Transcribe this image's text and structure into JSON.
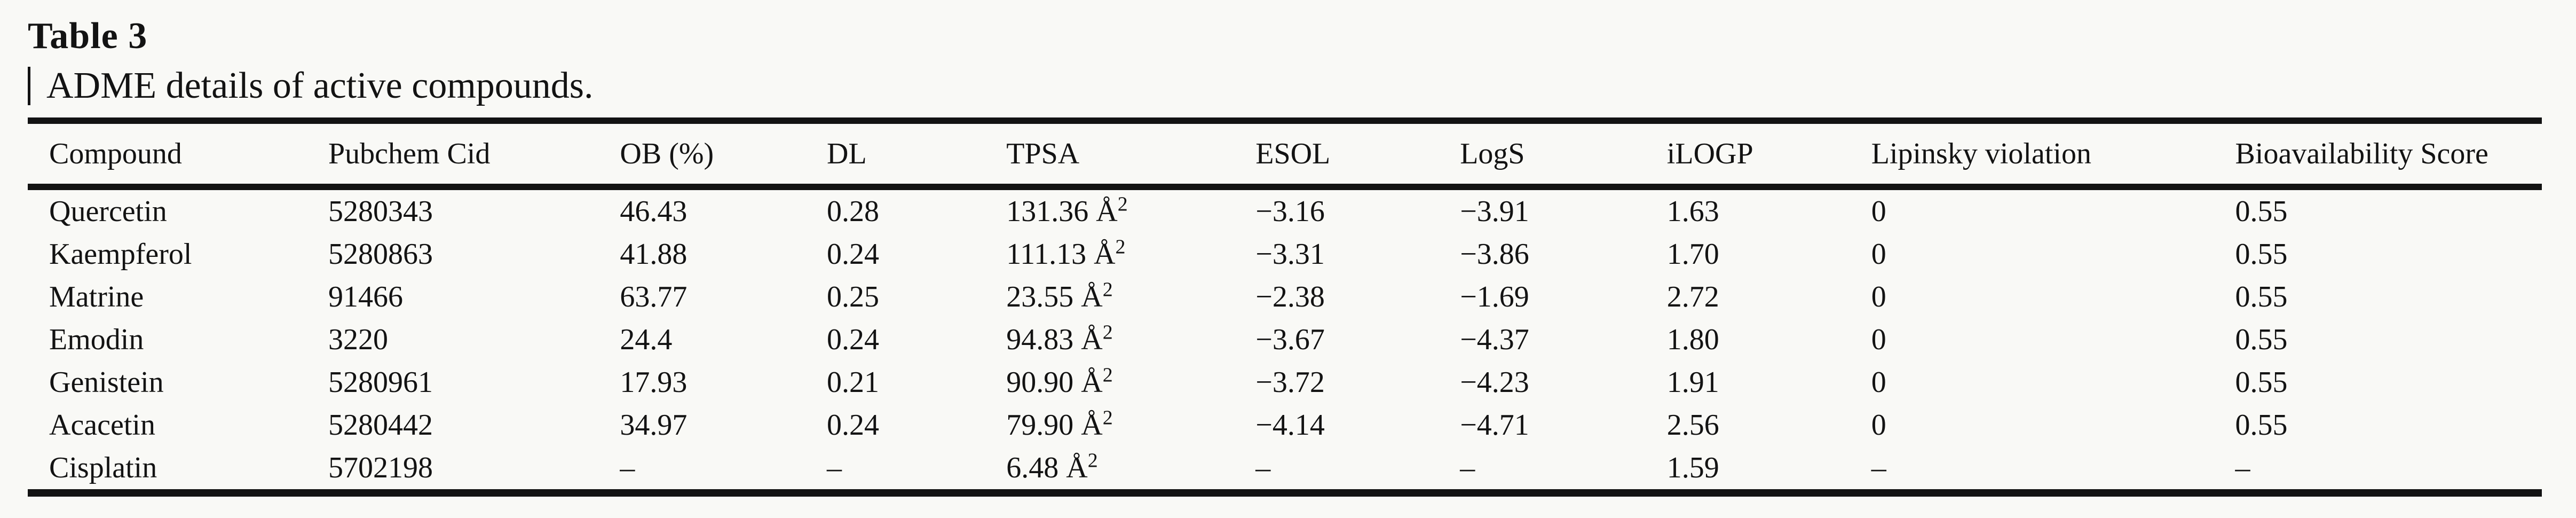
{
  "page": {
    "background_color": "#f9f9f6",
    "text_color": "#131313",
    "rule_color": "#131313"
  },
  "caption": {
    "title": "Table 3",
    "description": "ADME details of active compounds."
  },
  "table": {
    "columns": [
      "Compound",
      "Pubchem Cid",
      "OB (%)",
      "DL",
      "TPSA",
      "ESOL",
      "LogS",
      "iLOGP",
      "Lipinsky violation",
      "Bioavailability Score"
    ],
    "rows": [
      {
        "cells": [
          "Quercetin",
          "5280343",
          "46.43",
          "0.28",
          "131.36 Å²",
          "−3.16",
          "−3.91",
          "1.63",
          "0",
          "0.55"
        ]
      },
      {
        "cells": [
          "Kaempferol",
          "5280863",
          "41.88",
          "0.24",
          "111.13 Å²",
          "−3.31",
          "−3.86",
          "1.70",
          "0",
          "0.55"
        ]
      },
      {
        "cells": [
          "Matrine",
          "91466",
          "63.77",
          "0.25",
          "23.55 Å²",
          "−2.38",
          "−1.69",
          "2.72",
          "0",
          "0.55"
        ]
      },
      {
        "cells": [
          "Emodin",
          "3220",
          "24.4",
          "0.24",
          "94.83 Å²",
          "−3.67",
          "−4.37",
          "1.80",
          "0",
          "0.55"
        ]
      },
      {
        "cells": [
          "Genistein",
          "5280961",
          "17.93",
          "0.21",
          "90.90 Å²",
          "−3.72",
          "−4.23",
          "1.91",
          "0",
          "0.55"
        ]
      },
      {
        "cells": [
          "Acacetin",
          "5280442",
          "34.97",
          "0.24",
          "79.90 Å²",
          "−4.14",
          "−4.71",
          "2.56",
          "0",
          "0.55"
        ]
      },
      {
        "cells": [
          "Cisplatin",
          "5702198",
          "–",
          "–",
          "6.48 Å²",
          "–",
          "–",
          "1.59",
          "–",
          "–"
        ]
      }
    ]
  }
}
